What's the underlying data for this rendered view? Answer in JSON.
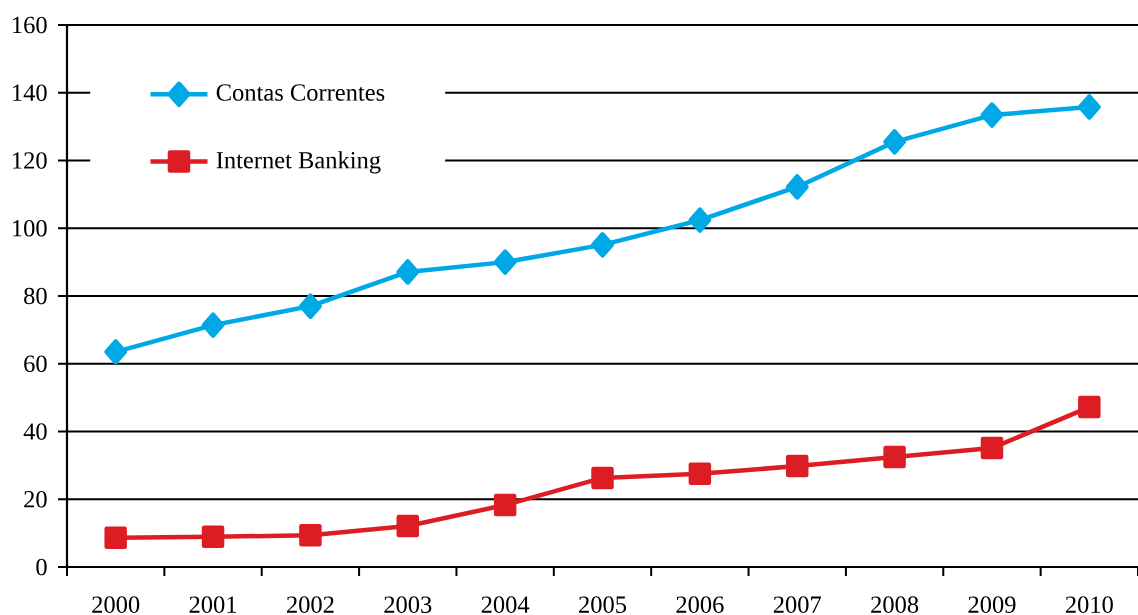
{
  "chart_data": {
    "type": "line",
    "categories": [
      "2000",
      "2001",
      "2002",
      "2003",
      "2004",
      "2005",
      "2006",
      "2007",
      "2008",
      "2009",
      "2010"
    ],
    "series": [
      {
        "name": "Contas Correntes",
        "color": "#00a8e6",
        "marker": "diamond",
        "values": [
          63.5,
          71.4,
          77.0,
          87.1,
          90.0,
          95.1,
          102.4,
          112.2,
          125.5,
          133.4,
          135.8
        ]
      },
      {
        "name": "Internet Banking",
        "color": "#dc1e24",
        "marker": "square",
        "values": [
          8.6,
          8.9,
          9.4,
          12.1,
          18.3,
          26.3,
          27.5,
          29.8,
          32.5,
          35.1,
          47.2
        ]
      }
    ],
    "ylim": [
      0,
      160
    ],
    "yticks": [
      0,
      20,
      40,
      60,
      80,
      100,
      120,
      140,
      160
    ],
    "grid": "y",
    "legend": "top left",
    "line_style": "solid"
  }
}
